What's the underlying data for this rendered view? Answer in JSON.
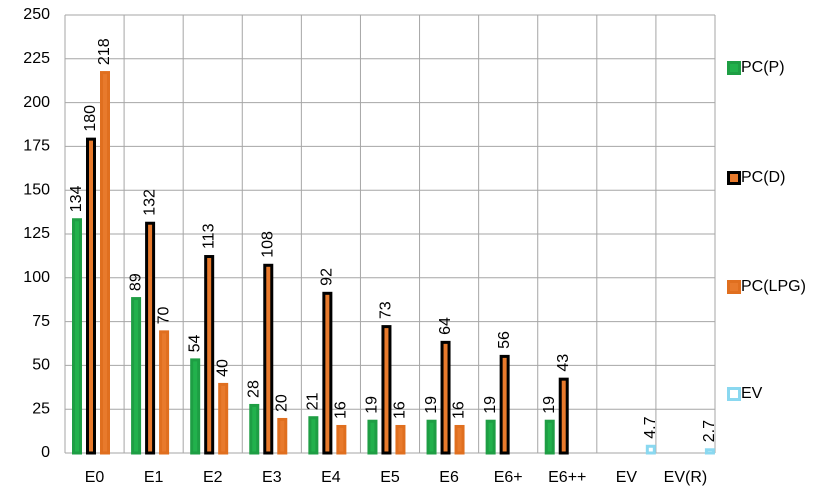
{
  "chart_data": {
    "type": "bar",
    "categories": [
      "E0",
      "E1",
      "E2",
      "E3",
      "E4",
      "E5",
      "E6",
      "E6+",
      "E6++",
      "EV",
      "EV(R)"
    ],
    "series": [
      {
        "name": "PC(P)",
        "color": "#22b14c",
        "edgecolor": "#1e9e44",
        "values": [
          134,
          89,
          54,
          28,
          21,
          19,
          19,
          19,
          19,
          null,
          null
        ]
      },
      {
        "name": "PC(D)",
        "color": "#e87a2c",
        "edgecolor": "#000000",
        "values": [
          180,
          132,
          113,
          108,
          92,
          73,
          64,
          56,
          43,
          null,
          null
        ]
      },
      {
        "name": "PC(LPG)",
        "color": "#e87a2c",
        "edgecolor": "#e06f1f",
        "values": [
          218,
          70,
          40,
          20,
          16,
          16,
          16,
          null,
          null,
          null,
          null
        ]
      },
      {
        "name": "EV",
        "color": "#ffffff",
        "edgecolor": "#8ad8f0",
        "values": [
          null,
          null,
          null,
          null,
          null,
          null,
          null,
          null,
          null,
          4.7,
          2.7
        ]
      }
    ],
    "ylim": [
      0,
      250
    ],
    "yticks": [
      0,
      25,
      50,
      75,
      100,
      125,
      150,
      175,
      200,
      225,
      250
    ],
    "grid": true,
    "legend": "right"
  }
}
